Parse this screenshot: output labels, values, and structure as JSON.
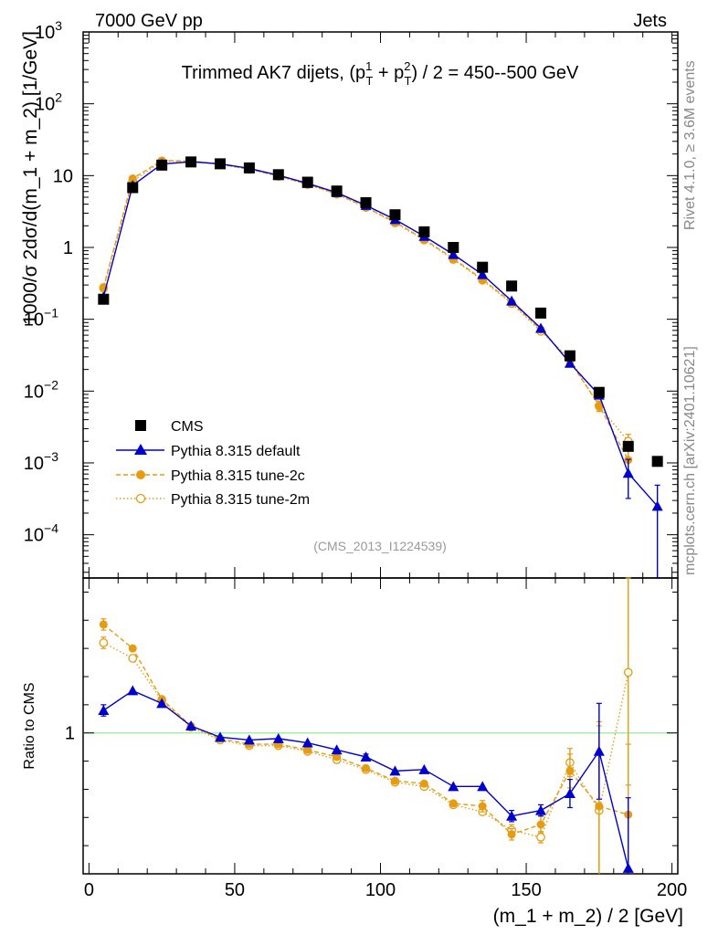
{
  "header": {
    "left": "7000 GeV pp",
    "right": "Jets"
  },
  "side_labels": {
    "rivet": "Rivet 4.1.0, ≥ 3.6M events",
    "mcplots": "mcplots.cern.ch [arXiv:2401.10621]"
  },
  "colors": {
    "cms": "#000000",
    "default": "#0000cc",
    "tune2c": "#e69c11",
    "tune2m": "#e69c11",
    "ref_line": "#90ee90"
  },
  "chart_data": [
    {
      "type": "scatter",
      "panel": "main",
      "title": "Trimmed AK7 dijets, (p_T^1 + p_T^2) / 2 = 450--500 GeV",
      "title_parts": {
        "pre": "Trimmed AK7 dijets, (p",
        "sup1": "1",
        "subT": "T",
        "plus": " + p",
        "sup2": "2",
        "post": ") / 2 = 450--500 GeV"
      },
      "ylabel": "1000/σ  2dσ/d(m_1 + m_2) [1/GeV]",
      "yscale": "log",
      "ylim": [
        2.5e-05,
        1000
      ],
      "xlim": [
        -2,
        202
      ],
      "y_ticks": [
        {
          "v": 1000,
          "base": "10",
          "exp": "3"
        },
        {
          "v": 100,
          "base": "10",
          "exp": "2"
        },
        {
          "v": 10,
          "base": "10",
          "exp": ""
        },
        {
          "v": 1,
          "base": "1",
          "exp": ""
        },
        {
          "v": 0.1,
          "base": "10",
          "exp": "−1"
        },
        {
          "v": 0.01,
          "base": "10",
          "exp": "−2"
        },
        {
          "v": 0.001,
          "base": "10",
          "exp": "−3"
        },
        {
          "v": 0.0001,
          "base": "10",
          "exp": "−4"
        }
      ],
      "watermark": "(CMS_2013_I1224539)",
      "legend": {
        "position": "center-left",
        "entries": [
          "CMS",
          "Pythia 8.315 default",
          "Pythia 8.315 tune-2c",
          "Pythia 8.315 tune-2m"
        ]
      },
      "x": [
        5,
        15,
        25,
        35,
        45,
        55,
        65,
        75,
        85,
        95,
        105,
        115,
        125,
        135,
        145,
        155,
        165,
        175,
        185,
        195
      ],
      "series": [
        {
          "name": "CMS",
          "style": "square",
          "values": [
            0.19,
            6.8,
            14.0,
            15.5,
            14.6,
            12.8,
            10.3,
            8.1,
            6.1,
            4.2,
            2.85,
            1.65,
            1.0,
            0.53,
            0.29,
            0.122,
            0.031,
            0.0096,
            0.0017,
            0.00105
          ]
        },
        {
          "name": "Pythia 8.315 default",
          "style": "triangle-line",
          "values": [
            0.205,
            7.3,
            14.5,
            15.6,
            14.6,
            12.6,
            10.1,
            7.8,
            5.8,
            3.85,
            2.45,
            1.43,
            0.8,
            0.42,
            0.18,
            0.075,
            0.0245,
            0.0088,
            0.00072,
            0.00025
          ],
          "yerr": [
            0,
            0,
            0,
            0,
            0,
            0,
            0,
            0,
            0,
            0,
            0,
            0,
            0,
            0,
            0,
            0,
            0,
            0,
            0.0004,
            0.00024
          ]
        },
        {
          "name": "Pythia 8.315 tune-2c",
          "style": "circle-dashed",
          "values": [
            0.28,
            9.1,
            16.2,
            16.0,
            14.4,
            12.3,
            9.9,
            7.6,
            5.6,
            3.65,
            2.25,
            1.3,
            0.7,
            0.36,
            0.172,
            0.072,
            0.026,
            0.0063,
            0.0011
          ],
          "yerr": [
            0,
            0,
            0,
            0,
            0,
            0,
            0,
            0,
            0,
            0,
            0,
            0,
            0,
            0,
            0,
            0,
            0,
            0.001,
            0.0004
          ]
        },
        {
          "name": "Pythia 8.315 tune-2m",
          "style": "opencircle-dotted",
          "values": [
            0.27,
            8.4,
            15.8,
            15.9,
            14.3,
            12.2,
            9.8,
            7.5,
            5.5,
            3.6,
            2.2,
            1.27,
            0.68,
            0.35,
            0.165,
            0.068,
            0.028,
            0.0062,
            0.002
          ],
          "yerr": [
            0,
            0,
            0,
            0,
            0,
            0,
            0,
            0,
            0,
            0,
            0,
            0,
            0,
            0,
            0,
            0,
            0,
            0.001,
            0.0005
          ]
        }
      ]
    },
    {
      "type": "line",
      "panel": "ratio",
      "ylabel": "Ratio to CMS",
      "xlabel": "(m_1 + m_2) / 2 [GeV]",
      "ylim": [
        0.5,
        1.55
      ],
      "xlim": [
        -2,
        202
      ],
      "y_ticks": [
        {
          "v": 1,
          "label": "1"
        }
      ],
      "x_ticks": [
        0,
        50,
        100,
        150,
        200
      ],
      "reference": 1,
      "x": [
        5,
        15,
        25,
        35,
        45,
        55,
        65,
        75,
        85,
        95,
        105,
        115,
        125,
        135,
        145,
        155,
        165,
        175,
        185
      ],
      "series": [
        {
          "name": "Pythia 8.315 default",
          "style": "triangle-line",
          "values": [
            1.08,
            1.15,
            1.105,
            1.025,
            0.985,
            0.975,
            0.98,
            0.965,
            0.94,
            0.915,
            0.865,
            0.87,
            0.81,
            0.81,
            0.705,
            0.725,
            0.785,
            0.935,
            0.52
          ],
          "yerr": [
            0.02,
            0,
            0,
            0,
            0,
            0,
            0,
            0,
            0,
            0.01,
            0,
            0,
            0,
            0,
            0.02,
            0.02,
            0.05,
            0.17,
            0.25
          ]
        },
        {
          "name": "Pythia 8.315 tune-2c",
          "style": "circle-dashed",
          "values": [
            1.385,
            1.3,
            1.12,
            1.025,
            0.98,
            0.96,
            0.96,
            0.94,
            0.915,
            0.875,
            0.83,
            0.82,
            0.75,
            0.74,
            0.64,
            0.675,
            0.865,
            0.74,
            0.71
          ],
          "yerr": [
            0.02,
            0,
            0,
            0,
            0,
            0,
            0,
            0,
            0,
            0,
            0,
            0,
            0,
            0.02,
            0.02,
            0.03,
            0.06,
            0.3,
            0.25
          ]
        },
        {
          "name": "Pythia 8.315 tune-2m",
          "style": "opencircle-dotted",
          "values": [
            1.32,
            1.265,
            1.115,
            1.02,
            0.975,
            0.955,
            0.955,
            0.935,
            0.905,
            0.87,
            0.825,
            0.81,
            0.745,
            0.72,
            0.655,
            0.63,
            0.895,
            0.725,
            1.215
          ],
          "yerr": [
            0.02,
            0,
            0,
            0,
            0,
            0,
            0,
            0,
            0,
            0,
            0,
            0,
            0,
            0,
            0.02,
            0.02,
            0.05,
            0.3,
            0.4
          ]
        }
      ]
    }
  ]
}
